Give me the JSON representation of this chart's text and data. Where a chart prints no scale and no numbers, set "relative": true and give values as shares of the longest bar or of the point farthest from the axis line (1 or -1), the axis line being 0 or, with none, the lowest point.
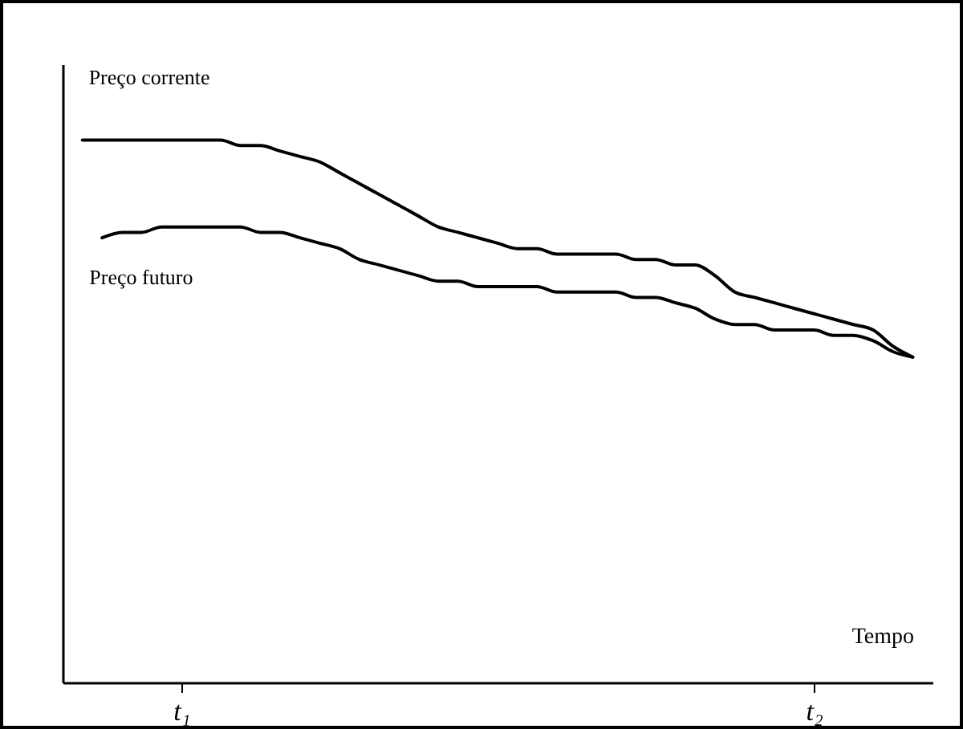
{
  "chart_data": {
    "type": "line",
    "relative": true,
    "xlabel": "Tempo",
    "categories": [
      null,
      null,
      null,
      null,
      null,
      "t₁",
      null,
      null,
      null,
      null,
      null,
      null,
      null,
      null,
      null,
      null,
      null,
      null,
      null,
      null,
      null,
      null,
      null,
      null,
      null,
      null,
      null,
      null,
      null,
      null,
      null,
      null,
      null,
      null,
      null,
      null,
      null,
      "t₂",
      null,
      null,
      null,
      null,
      null
    ],
    "series": [
      {
        "name": "Preço corrente",
        "color": "#000000",
        "values": [
          1.0,
          1.0,
          1.0,
          1.0,
          1.0,
          1.0,
          1.0,
          1.0,
          0.99,
          0.99,
          0.98,
          0.97,
          0.96,
          0.94,
          0.92,
          0.9,
          0.88,
          0.86,
          0.84,
          0.83,
          0.82,
          0.81,
          0.8,
          0.8,
          0.79,
          0.79,
          0.79,
          0.79,
          0.78,
          0.78,
          0.77,
          0.77,
          0.75,
          0.72,
          0.71,
          0.7,
          0.69,
          0.68,
          0.67,
          0.66,
          0.65,
          0.62,
          0.6
        ]
      },
      {
        "name": "Preço futuro",
        "color": "#000000",
        "values": [
          null,
          0.82,
          0.83,
          0.83,
          0.84,
          0.84,
          0.84,
          0.84,
          0.84,
          0.83,
          0.83,
          0.82,
          0.81,
          0.8,
          0.78,
          0.77,
          0.76,
          0.75,
          0.74,
          0.74,
          0.73,
          0.73,
          0.73,
          0.73,
          0.72,
          0.72,
          0.72,
          0.72,
          0.71,
          0.71,
          0.7,
          0.69,
          0.67,
          0.66,
          0.66,
          0.65,
          0.65,
          0.65,
          0.64,
          0.64,
          0.63,
          0.61,
          0.6
        ]
      }
    ],
    "legend": false,
    "marker": "none",
    "line_style": "solid",
    "grid": false
  }
}
